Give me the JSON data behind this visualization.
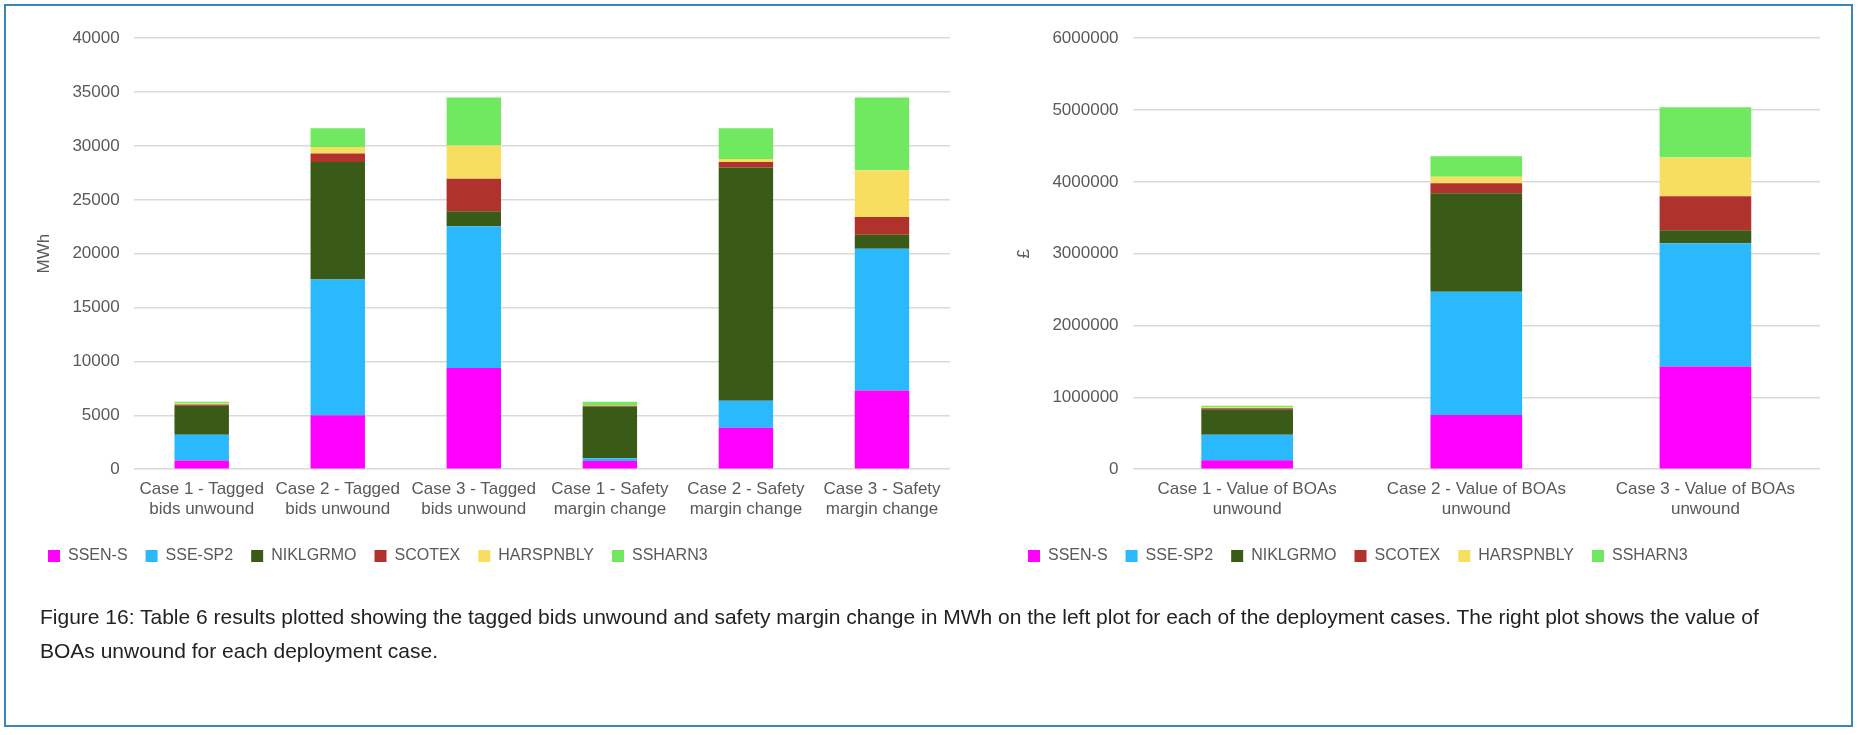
{
  "chart_data": [
    {
      "type": "bar",
      "stacked": true,
      "ylabel": "MWh",
      "grid": "y",
      "legend": "bottom",
      "categories": [
        "Case 1 - Tagged bids unwound",
        "Case 2 - Tagged bids unwound",
        "Case 3 - Tagged bids unwound",
        "Case 1 - Safety margin change",
        "Case 2 - Safety margin change",
        "Case 3 - Safety margin change"
      ],
      "ylim": [
        0,
        40000
      ],
      "yticks": [
        0,
        5000,
        10000,
        15000,
        20000,
        25000,
        30000,
        35000,
        40000
      ],
      "series": [
        {
          "name": "SSEN-S",
          "color": "#ff00ff",
          "values": [
            800,
            5000,
            9400,
            750,
            3850,
            7300
          ]
        },
        {
          "name": "SSE-SP2",
          "color": "#2bb9fd",
          "values": [
            2400,
            12600,
            13150,
            270,
            2500,
            13150
          ]
        },
        {
          "name": "NIKLGRMO",
          "color": "#3a5a17",
          "values": [
            2700,
            10900,
            1400,
            4800,
            21650,
            1300
          ]
        },
        {
          "name": "SCOTEX",
          "color": "#b0322c",
          "values": [
            100,
            800,
            3000,
            80,
            500,
            1650
          ]
        },
        {
          "name": "HARSPNBLY",
          "color": "#f7dd60",
          "values": [
            100,
            600,
            3100,
            50,
            300,
            4350
          ]
        },
        {
          "name": "SSHARN3",
          "color": "#70e860",
          "values": [
            150,
            1750,
            4450,
            300,
            2850,
            6750
          ]
        }
      ],
      "annotations": [
        "Figure 16: Table 6 results plotted showing the tagged bids unwound and safety margin change in MWh on the left plot for each of the deployment cases. The right plot shows the value of BOAs unwound for each deployment case."
      ]
    },
    {
      "type": "bar",
      "stacked": true,
      "ylabel": "£",
      "grid": "y",
      "legend": "bottom",
      "categories": [
        "Case 1 - Value of BOAs unwound",
        "Case 2 - Value of BOAs unwound",
        "Case 3 - Value of BOAs unwound"
      ],
      "ylim": [
        0,
        6000000
      ],
      "yticks": [
        0,
        1000000,
        2000000,
        3000000,
        4000000,
        5000000,
        6000000
      ],
      "series": [
        {
          "name": "SSEN-S",
          "color": "#ff00ff",
          "values": [
            125000,
            755000,
            1430000
          ]
        },
        {
          "name": "SSE-SP2",
          "color": "#2bb9fd",
          "values": [
            355000,
            1715000,
            1715000
          ]
        },
        {
          "name": "NIKLGRMO",
          "color": "#3a5a17",
          "values": [
            355000,
            1370000,
            180000
          ]
        },
        {
          "name": "SCOTEX",
          "color": "#b0322c",
          "values": [
            15000,
            140000,
            475000
          ]
        },
        {
          "name": "HARSPNBLY",
          "color": "#f7dd60",
          "values": [
            15000,
            90000,
            540000
          ]
        },
        {
          "name": "SSHARN3",
          "color": "#70e860",
          "values": [
            17000,
            285000,
            700000
          ]
        }
      ]
    }
  ]
}
